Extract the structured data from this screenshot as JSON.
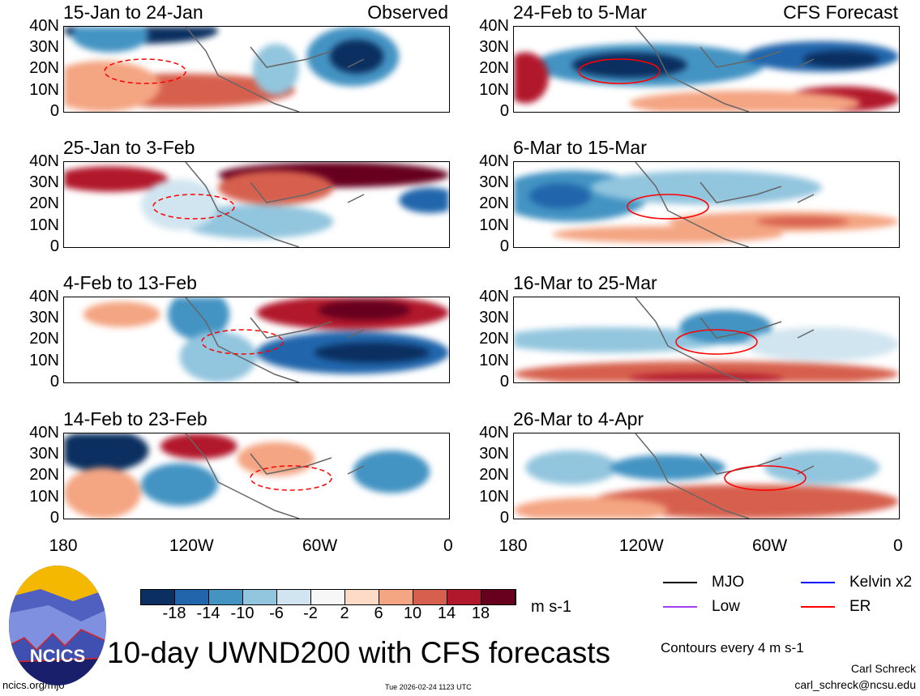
{
  "panels": [
    {
      "title": "15-Jan to 24-Jan",
      "tag": "Observed"
    },
    {
      "title": "24-Feb to 5-Mar",
      "tag": "CFS Forecast"
    },
    {
      "title": "25-Jan to 3-Feb",
      "tag": ""
    },
    {
      "title": "6-Mar to 15-Mar",
      "tag": ""
    },
    {
      "title": "4-Feb to 13-Feb",
      "tag": ""
    },
    {
      "title": "16-Mar to 25-Mar",
      "tag": ""
    },
    {
      "title": "14-Feb to 23-Feb",
      "tag": ""
    },
    {
      "title": "26-Mar to 4-Apr",
      "tag": ""
    }
  ],
  "y_ticks": [
    "40N",
    "30N",
    "20N",
    "10N",
    "0"
  ],
  "x_ticks": [
    "180",
    "120W",
    "60W",
    "0"
  ],
  "colorbar": {
    "colors": [
      "#0a2f60",
      "#2166ac",
      "#4393c3",
      "#92c5de",
      "#d1e5f0",
      "#f7f7f7",
      "#fddbc7",
      "#f4a582",
      "#d6604d",
      "#b2182b",
      "#67001f"
    ],
    "labels": [
      "-18",
      "-14",
      "-10",
      "-6",
      "-2",
      "2",
      "6",
      "10",
      "14",
      "18"
    ],
    "units": "m s-1"
  },
  "legend": [
    {
      "label": "MJO",
      "color": "#000000"
    },
    {
      "label": "Kelvin x2",
      "color": "#0000ff"
    },
    {
      "label": "Low",
      "color": "#a040f0"
    },
    {
      "label": "ER",
      "color": "#ff0000"
    }
  ],
  "contours_note": "Contours every 4 m s-1",
  "main_title": "10-day UWND200 with CFS forecasts",
  "logo_text": "NCICS",
  "site": "ncics.org/mjo",
  "timestamp": "Tue 2026-02-24 1123 UTC",
  "author": "Carl Schreck",
  "email": "carl_schreck@ncsu.edu"
}
